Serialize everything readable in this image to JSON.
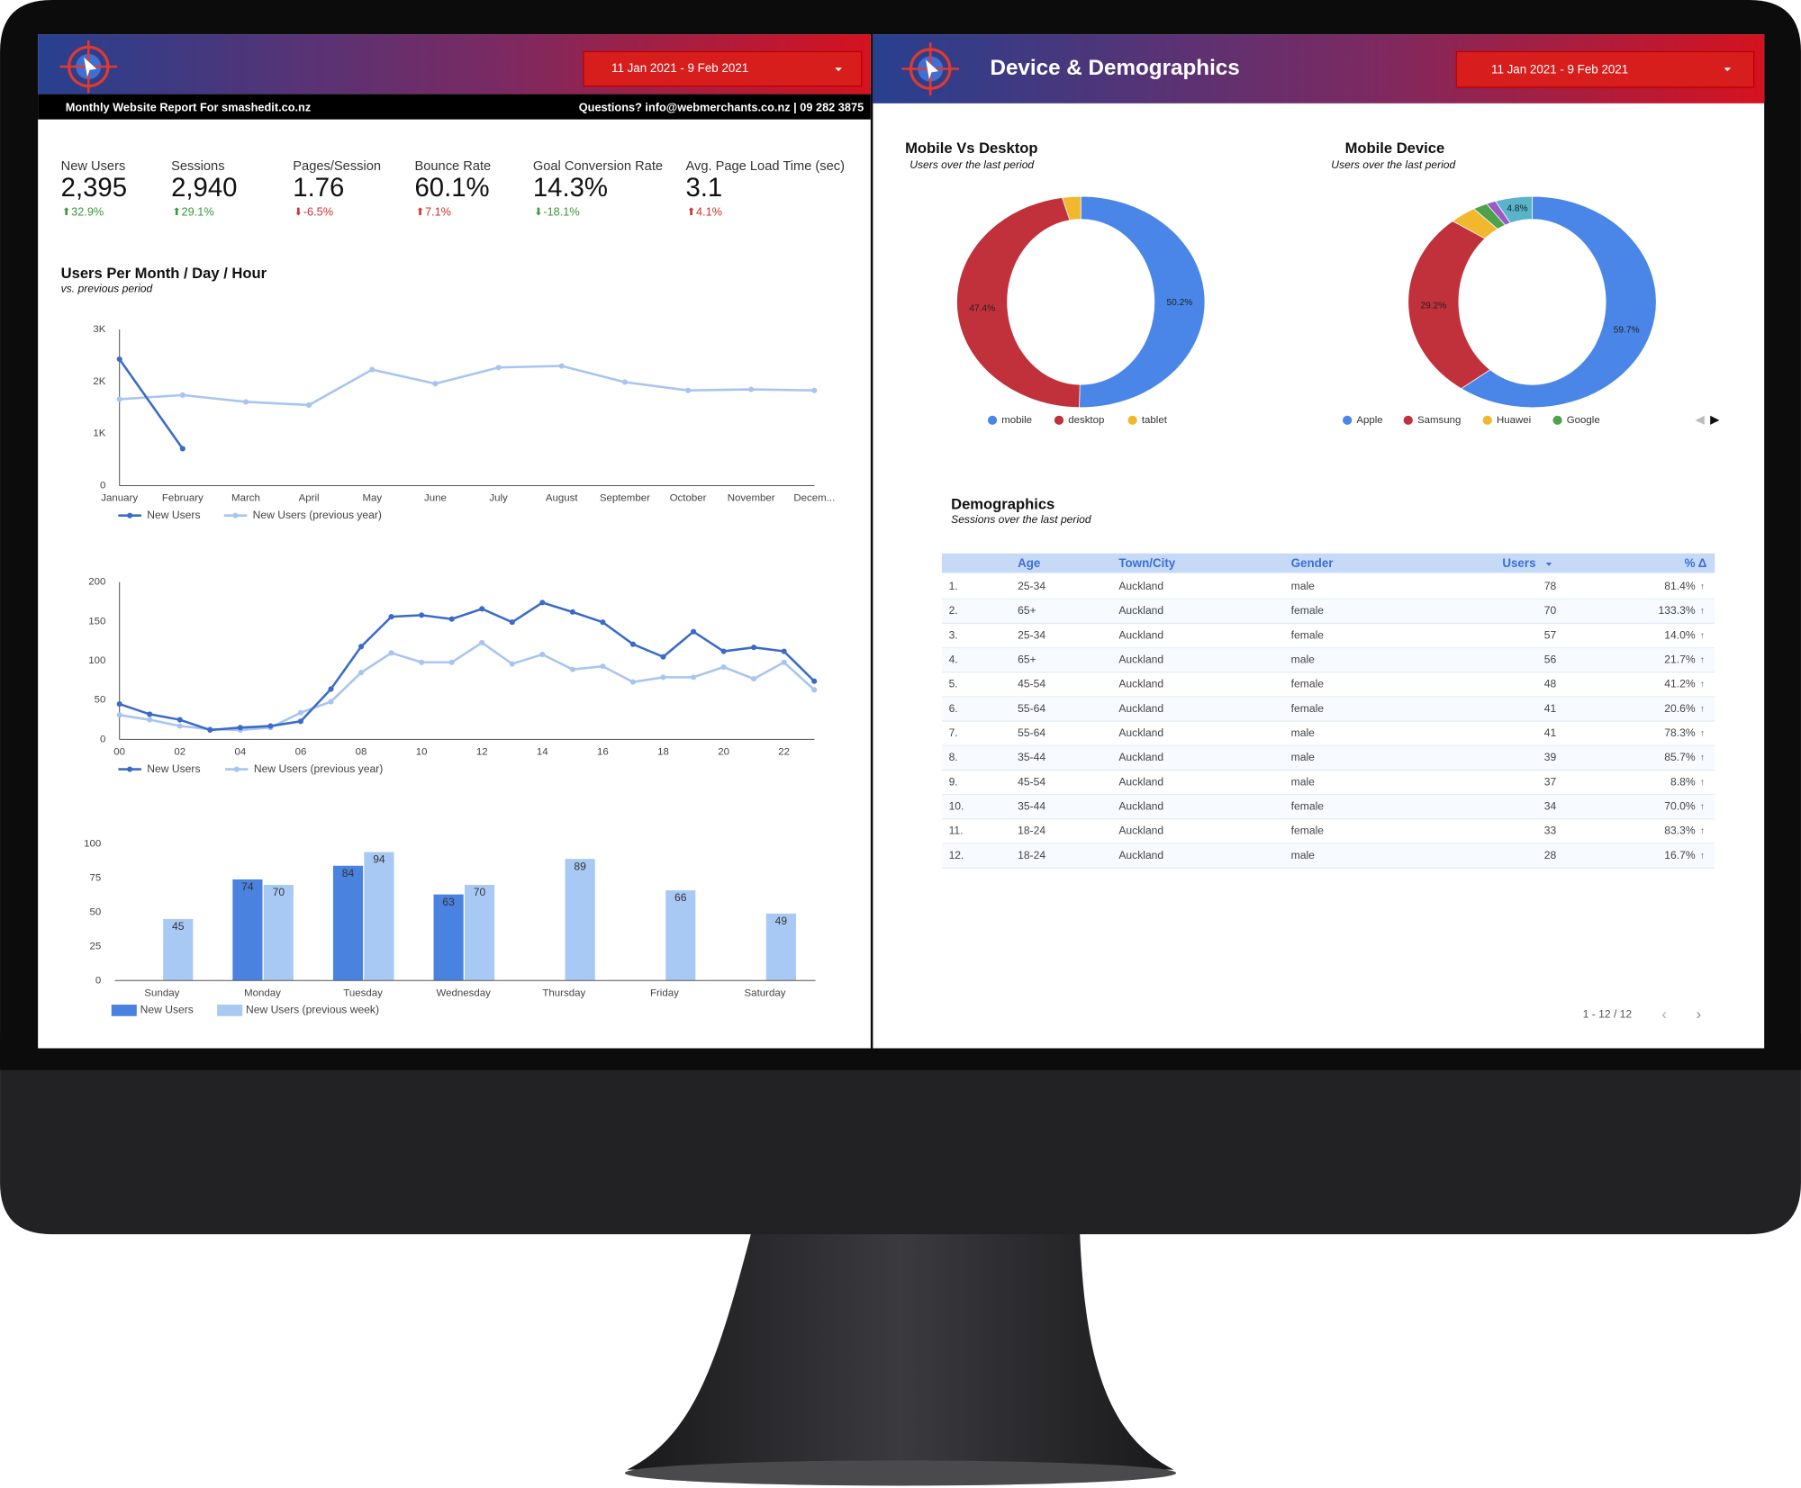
{
  "left_header": {
    "date_range": "11 Jan 2021 - 9 Feb 2021",
    "report_for": "Monthly Website Report For smashedit.co.nz",
    "contact": "Questions? info@webmerchants.co.nz | 09 282 3875"
  },
  "right_header": {
    "title": "Device & Demographics",
    "date_range": "11 Jan 2021 - 9 Feb 2021"
  },
  "kpis": [
    {
      "label": "New Users",
      "value": "2,395",
      "change": "32.9%",
      "change_color": "#3a9a3a"
    },
    {
      "label": "Sessions",
      "value": "2,940",
      "change": "29.1%",
      "change_color": "#3a9a3a"
    },
    {
      "label": "Pages/Session",
      "value": "1.76",
      "change": "-6.5%",
      "change_color": "#d0312d"
    },
    {
      "label": "Bounce Rate",
      "value": "60.1%",
      "change": "7.1%",
      "change_color": "#d0312d"
    },
    {
      "label": "Goal Conversion Rate",
      "value": "14.3%",
      "change": "-18.1%",
      "change_color": "#3a9a3a"
    },
    {
      "label": "Avg. Page Load Time (sec)",
      "value": "3.1",
      "change": "4.1%",
      "change_color": "#d0312d"
    }
  ],
  "chart_data": [
    {
      "type": "line",
      "title": "Users Per Month / Day / Hour",
      "subtitle": "vs. previous period",
      "categories": [
        "January",
        "February",
        "March",
        "April",
        "May",
        "June",
        "July",
        "August",
        "September",
        "October",
        "November",
        "Decem..."
      ],
      "series": [
        {
          "name": "New Users",
          "color": "#3a6bc9",
          "values": [
            2430,
            710,
            null,
            null,
            null,
            null,
            null,
            null,
            null,
            null,
            null,
            null
          ]
        },
        {
          "name": "New Users (previous year)",
          "color": "#a8c5f2",
          "values": [
            1660,
            1740,
            1610,
            1550,
            2230,
            1960,
            2270,
            2300,
            1990,
            1830,
            1850,
            1830
          ]
        }
      ],
      "ylim": [
        0,
        3000
      ],
      "yticks": [
        0,
        {
          "value": 1000,
          "label": "1K"
        },
        {
          "value": 2000,
          "label": "2K"
        },
        {
          "value": 3000,
          "label": "3K"
        }
      ]
    },
    {
      "type": "line",
      "categories": [
        "00",
        null,
        "02",
        null,
        "04",
        null,
        "06",
        null,
        "08",
        null,
        "10",
        null,
        "12",
        null,
        "14",
        null,
        "16",
        null,
        "18",
        null,
        "20",
        null,
        "22",
        null
      ],
      "series": [
        {
          "name": "New Users",
          "color": "#3a6bc9",
          "values": [
            45,
            32,
            25,
            12,
            15,
            17,
            23,
            64,
            118,
            156,
            158,
            153,
            166,
            149,
            174,
            162,
            149,
            121,
            105,
            137,
            112,
            117,
            112,
            74
          ]
        },
        {
          "name": "New Users (previous year)",
          "color": "#a8c5f2",
          "values": [
            31,
            25,
            17,
            13,
            12,
            15,
            34,
            48,
            85,
            110,
            98,
            98,
            123,
            96,
            108,
            89,
            93,
            73,
            79,
            79,
            92,
            77,
            98,
            63
          ]
        }
      ],
      "ylim": [
        0,
        200
      ],
      "yticks": [
        0,
        50,
        100,
        150,
        200
      ]
    },
    {
      "type": "bar",
      "categories": [
        "Sunday",
        "Monday",
        "Tuesday",
        "Wednesday",
        "Thursday",
        "Friday",
        "Saturday"
      ],
      "series": [
        {
          "name": "New Users",
          "color": "#4a82e0",
          "values": [
            null,
            74,
            84,
            63,
            null,
            null,
            null
          ]
        },
        {
          "name": "New Users (previous week)",
          "color": "#a9c9f5",
          "values": [
            45,
            70,
            94,
            70,
            89,
            66,
            49
          ]
        }
      ],
      "ylim": [
        0,
        100
      ],
      "yticks": [
        0,
        25,
        50,
        75,
        100
      ]
    },
    {
      "type": "pie",
      "title": "Mobile Vs Desktop",
      "subtitle": "Users over the last period",
      "categories": [
        "mobile",
        "desktop",
        "tablet"
      ],
      "values": [
        50.2,
        47.4,
        2.4
      ],
      "value_labels": [
        "50.2%",
        "47.4%",
        null
      ],
      "colors": [
        "#4a86e8",
        "#c0313b",
        "#f1b82d"
      ]
    },
    {
      "type": "pie",
      "title": "Mobile Device",
      "subtitle": "Users over the last period",
      "categories": [
        "Apple",
        "Samsung",
        "Huawei",
        "Google",
        null,
        null
      ],
      "values": [
        59.7,
        29.2,
        3.3,
        1.8,
        1.2,
        4.8
      ],
      "value_labels": [
        "59.7%",
        "29.2%",
        null,
        null,
        null,
        "4.8%"
      ],
      "colors": [
        "#4a86e8",
        "#c0313b",
        "#f1b82d",
        "#4ea24a",
        "#9b59c6",
        "#59b3c9"
      ]
    }
  ],
  "demographics": {
    "title": "Demographics",
    "subtitle": "Sessions over the last period",
    "columns": [
      "Age",
      "Town/City",
      "Gender",
      "Users",
      "% Δ"
    ],
    "rows": [
      [
        "1.",
        "25-34",
        "Auckland",
        "male",
        78,
        "81.4%"
      ],
      [
        "2.",
        "65+",
        "Auckland",
        "female",
        70,
        "133.3%"
      ],
      [
        "3.",
        "25-34",
        "Auckland",
        "female",
        57,
        "14.0%"
      ],
      [
        "4.",
        "65+",
        "Auckland",
        "male",
        56,
        "21.7%"
      ],
      [
        "5.",
        "45-54",
        "Auckland",
        "female",
        48,
        "41.2%"
      ],
      [
        "6.",
        "55-64",
        "Auckland",
        "female",
        41,
        "20.6%"
      ],
      [
        "7.",
        "55-64",
        "Auckland",
        "male",
        41,
        "78.3%"
      ],
      [
        "8.",
        "35-44",
        "Auckland",
        "male",
        39,
        "85.7%"
      ],
      [
        "9.",
        "45-54",
        "Auckland",
        "male",
        37,
        "8.8%"
      ],
      [
        "10.",
        "35-44",
        "Auckland",
        "female",
        34,
        "70.0%"
      ],
      [
        "11.",
        "18-24",
        "Auckland",
        "female",
        33,
        "83.3%"
      ],
      [
        "12.",
        "18-24",
        "Auckland",
        "male",
        28,
        "16.7%"
      ]
    ],
    "pager": "1 - 12 / 12"
  }
}
